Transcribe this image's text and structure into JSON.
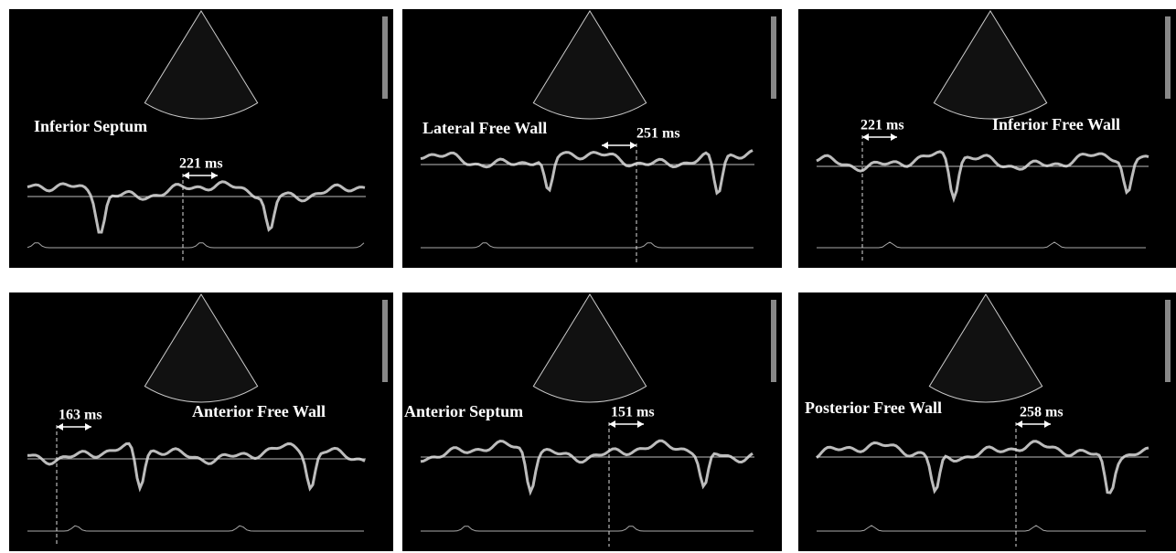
{
  "panels": [
    {
      "label": "Inferior Septum",
      "interval": "221 ms"
    },
    {
      "label": "Lateral Free Wall",
      "interval": "251 ms"
    },
    {
      "label": "Inferior Free Wall",
      "interval": "221 ms"
    },
    {
      "label": "Anterior Free Wall",
      "interval": "163 ms"
    },
    {
      "label": "Anterior Septum",
      "interval": "151 ms"
    },
    {
      "label": "Posterior Free Wall",
      "interval": "258 ms"
    }
  ]
}
